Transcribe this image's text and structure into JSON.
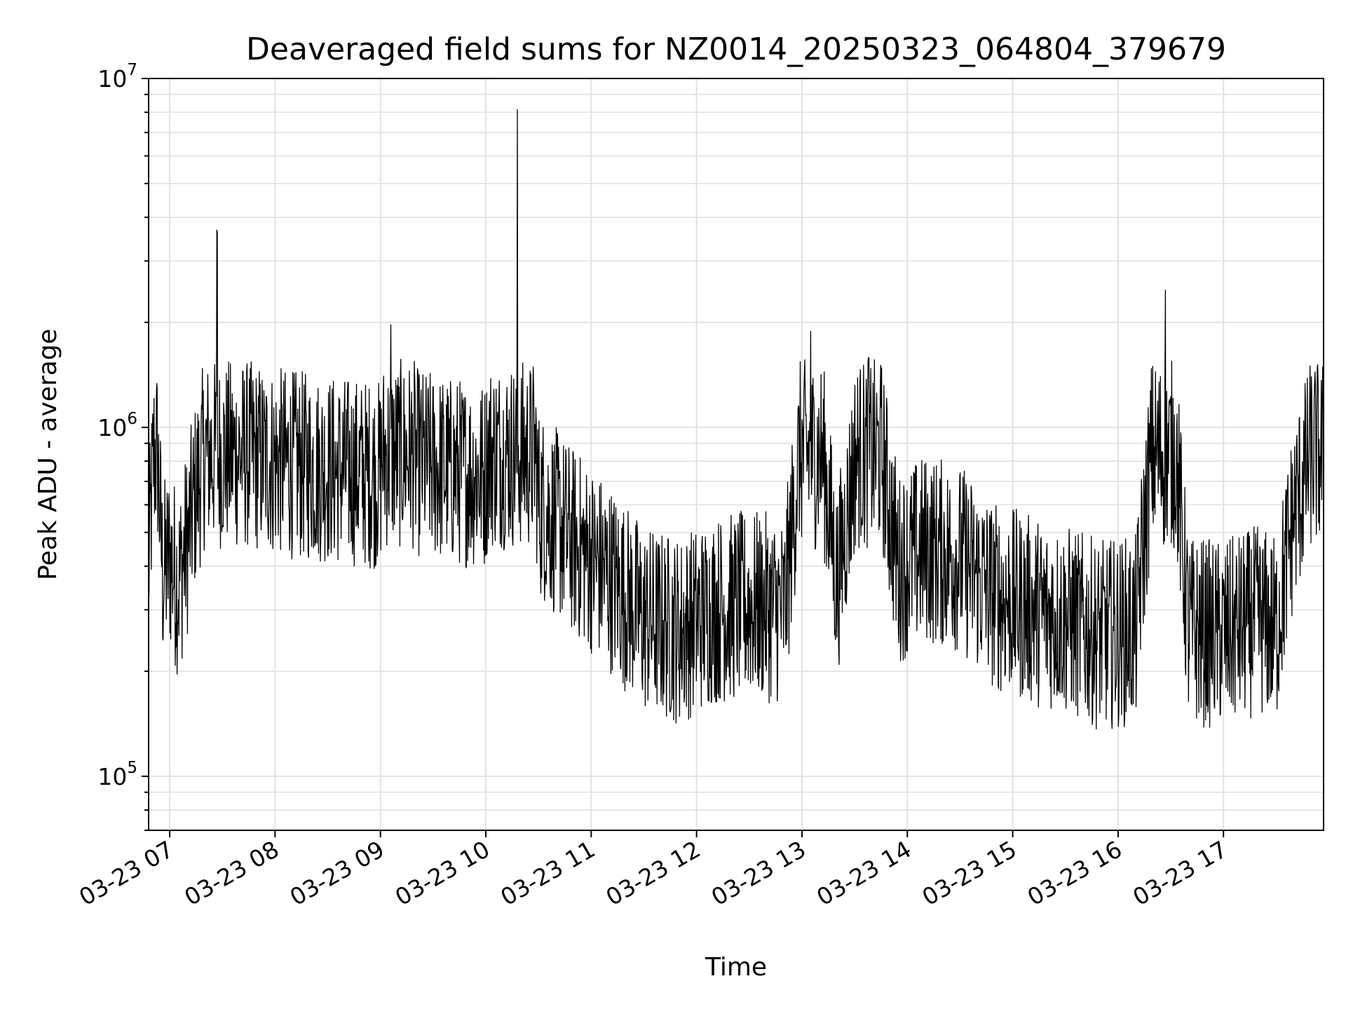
{
  "chart_data": {
    "type": "line",
    "title": "Deaveraged field sums for NZ0014_20250323_064804_379679",
    "xlabel": "Time",
    "ylabel": "Peak ADU - average",
    "yscale": "log",
    "ylim": [
      70000,
      10000000
    ],
    "xlim": [
      "2025-03-23 06:48",
      "2025-03-23 17:57"
    ],
    "x_ticks": [
      "03-23 07",
      "03-23 08",
      "03-23 09",
      "03-23 10",
      "03-23 11",
      "03-23 12",
      "03-23 13",
      "03-23 14",
      "03-23 15",
      "03-23 16",
      "03-23 17"
    ],
    "y_ticks": [
      {
        "base": "10",
        "exp": "5",
        "value": 100000
      },
      {
        "base": "10",
        "exp": "6",
        "value": 1000000
      },
      {
        "base": "10",
        "exp": "7",
        "value": 10000000
      }
    ],
    "grid": true,
    "line_color": "#000000",
    "series": [
      {
        "x": [
          "2025-03-23 06:48",
          "2025-03-23 06:52",
          "2025-03-23 06:56",
          "2025-03-23 07:00",
          "2025-03-23 07:05",
          "2025-03-23 07:10",
          "2025-03-23 07:15",
          "2025-03-23 07:20",
          "2025-03-23 07:27",
          "2025-03-23 07:30",
          "2025-03-23 07:40",
          "2025-03-23 08:00",
          "2025-03-23 08:20",
          "2025-03-23 08:40",
          "2025-03-23 09:00",
          "2025-03-23 09:06",
          "2025-03-23 09:20",
          "2025-03-23 09:40",
          "2025-03-23 10:00",
          "2025-03-23 10:18",
          "2025-03-23 10:30",
          "2025-03-23 10:50",
          "2025-03-23 11:10",
          "2025-03-23 11:30",
          "2025-03-23 11:50",
          "2025-03-23 12:10",
          "2025-03-23 12:30",
          "2025-03-23 12:50",
          "2025-03-23 13:05",
          "2025-03-23 13:20",
          "2025-03-23 13:38",
          "2025-03-23 13:55",
          "2025-03-23 14:10",
          "2025-03-23 14:30",
          "2025-03-23 14:50",
          "2025-03-23 15:10",
          "2025-03-23 15:30",
          "2025-03-23 15:50",
          "2025-03-23 16:10",
          "2025-03-23 16:27",
          "2025-03-23 16:40",
          "2025-03-23 17:00",
          "2025-03-23 17:20",
          "2025-03-23 17:30",
          "2025-03-23 17:40",
          "2025-03-23 17:50",
          "2025-03-23 17:57"
        ],
        "values": [
          420000,
          1200000,
          400000,
          450000,
          380000,
          500000,
          700000,
          900000,
          3800000,
          950000,
          900000,
          850000,
          820000,
          800000,
          780000,
          2000000,
          850000,
          800000,
          780000,
          8200000,
          650000,
          500000,
          400000,
          300000,
          280000,
          320000,
          330000,
          320000,
          1900000,
          380000,
          1600000,
          420000,
          480000,
          450000,
          350000,
          320000,
          300000,
          270000,
          280000,
          2500000,
          280000,
          270000,
          300000,
          280000,
          600000,
          900000,
          1000000
        ]
      }
    ]
  }
}
